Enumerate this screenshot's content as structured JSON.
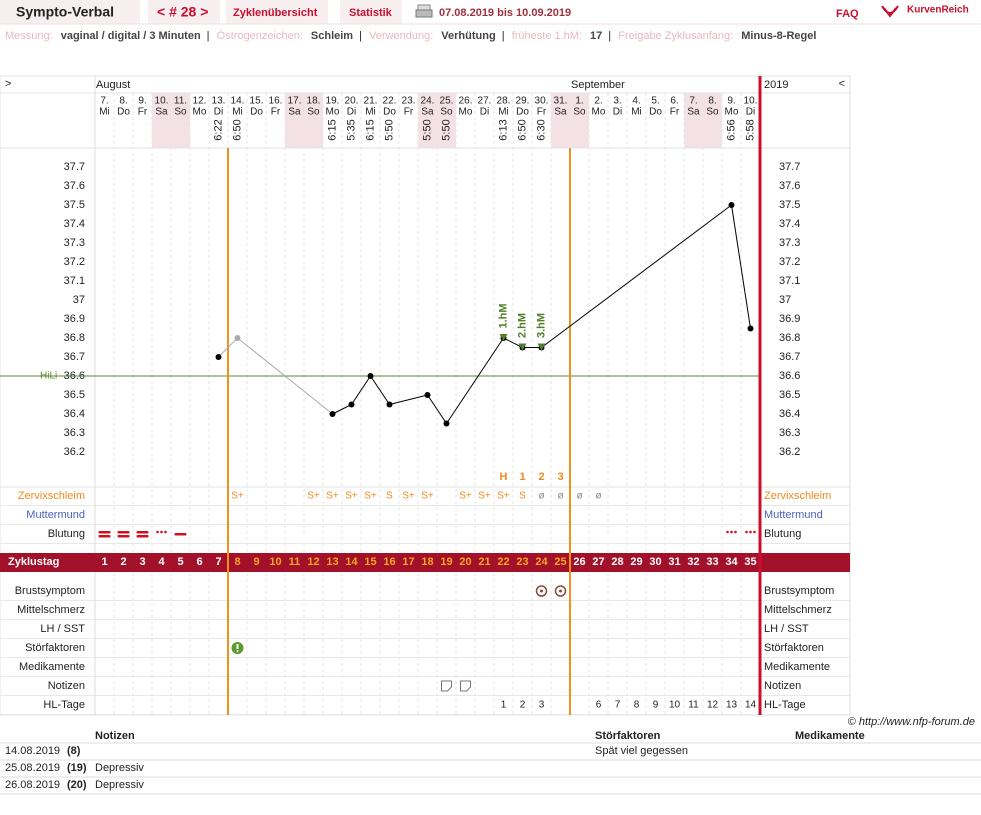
{
  "header": {
    "title": "Sympto-Verbal",
    "cycle_nav": "< # 28 >",
    "tabs": [
      "Zyklenübersicht",
      "Statistik"
    ],
    "period": "07.08.2019 bis 10.09.2019",
    "faq": "FAQ",
    "logo": "KurvenReich"
  },
  "info": [
    {
      "label": "Messung:",
      "value": "vaginal / digital / 3 Minuten"
    },
    {
      "label": "Östrogenzeichen:",
      "value": "Schleim"
    },
    {
      "label": "Verwendung:",
      "value": "Verhütung"
    },
    {
      "label": "früheste 1.hM:",
      "value": "17"
    },
    {
      "label": "Freigabe Zyklusanfang:",
      "value": "Minus-8-Regel"
    }
  ],
  "chart": {
    "nav_left": ">",
    "nav_right": "<",
    "months": [
      "August",
      "September"
    ],
    "year": "2019",
    "ylim": [
      36.0,
      37.8
    ],
    "yticks": [
      36.2,
      36.3,
      36.4,
      36.5,
      36.6,
      36.7,
      36.8,
      36.9,
      37,
      37.1,
      37.2,
      37.3,
      37.4,
      37.5,
      37.6,
      37.7
    ],
    "hili": 36.6,
    "hili_label": "HiLi",
    "fertile_window": [
      8,
      25
    ],
    "row_labels": [
      "Zervixschleim",
      "Muttermund",
      "Blutung",
      "Zyklustag",
      "Brustsymptom",
      "Mittelschmerz",
      "LH / SST",
      "Störfaktoren",
      "Medikamente",
      "Notizen",
      "HL-Tage"
    ],
    "days": [
      {
        "date": "7.",
        "weekday": "Mi",
        "cycle_day": 1,
        "bleeding": 3
      },
      {
        "date": "8.",
        "weekday": "Do",
        "cycle_day": 2,
        "bleeding": 3
      },
      {
        "date": "9.",
        "weekday": "Fr",
        "cycle_day": 3,
        "bleeding": 3
      },
      {
        "date": "10.",
        "weekday": "Sa",
        "cycle_day": 4,
        "bleeding": 1
      },
      {
        "date": "11.",
        "weekday": "So",
        "cycle_day": 5,
        "bleeding": 2
      },
      {
        "date": "12.",
        "weekday": "Mo",
        "cycle_day": 6
      },
      {
        "date": "13.",
        "weekday": "Di",
        "cycle_day": 7,
        "time": "6:22",
        "temp": 36.7
      },
      {
        "date": "14.",
        "weekday": "Mi",
        "cycle_day": 8,
        "time": "6:50",
        "temp": 36.8,
        "excluded": true,
        "mucus": "S+",
        "disturbance": true
      },
      {
        "date": "15.",
        "weekday": "Do",
        "cycle_day": 9
      },
      {
        "date": "16.",
        "weekday": "Fr",
        "cycle_day": 10
      },
      {
        "date": "17.",
        "weekday": "Sa",
        "cycle_day": 11
      },
      {
        "date": "18.",
        "weekday": "So",
        "cycle_day": 12,
        "mucus": "S+"
      },
      {
        "date": "19.",
        "weekday": "Mo",
        "cycle_day": 13,
        "time": "6:15",
        "temp": 36.4,
        "mucus": "S+"
      },
      {
        "date": "20.",
        "weekday": "Di",
        "cycle_day": 14,
        "time": "5:35",
        "temp": 36.45,
        "mucus": "S+"
      },
      {
        "date": "21.",
        "weekday": "Mi",
        "cycle_day": 15,
        "time": "6:15",
        "temp": 36.6,
        "mucus": "S+"
      },
      {
        "date": "22.",
        "weekday": "Do",
        "cycle_day": 16,
        "time": "5:50",
        "temp": 36.45,
        "mucus": "S"
      },
      {
        "date": "23.",
        "weekday": "Fr",
        "cycle_day": 17,
        "mucus": "S+"
      },
      {
        "date": "24.",
        "weekday": "Sa",
        "cycle_day": 18,
        "time": "5:50",
        "temp": 36.5,
        "mucus": "S+"
      },
      {
        "date": "25.",
        "weekday": "So",
        "cycle_day": 19,
        "time": "5:50",
        "temp": 36.35,
        "note": true
      },
      {
        "date": "26.",
        "weekday": "Mo",
        "cycle_day": 20,
        "mucus": "S+",
        "note": true
      },
      {
        "date": "27.",
        "weekday": "Di",
        "cycle_day": 21,
        "mucus": "S+"
      },
      {
        "date": "28.",
        "weekday": "Mi",
        "cycle_day": 22,
        "time": "6:13",
        "temp": 36.8,
        "mucus": "S+",
        "peak": "H",
        "hm": "1.hM",
        "hl": 1
      },
      {
        "date": "29.",
        "weekday": "Do",
        "cycle_day": 23,
        "time": "6:50",
        "temp": 36.75,
        "mucus": "S",
        "peak": "1",
        "hm": "2.hM",
        "hl": 2
      },
      {
        "date": "30.",
        "weekday": "Fr",
        "cycle_day": 24,
        "time": "6:30",
        "temp": 36.75,
        "mucus": "ø",
        "peak": "2",
        "hm": "3.hM",
        "hl": 3,
        "breast": true
      },
      {
        "date": "31.",
        "weekday": "Sa",
        "cycle_day": 25,
        "mucus": "ø",
        "peak": "3",
        "breast": true
      },
      {
        "date": "1.",
        "weekday": "So",
        "cycle_day": 26,
        "mucus": "ø"
      },
      {
        "date": "2.",
        "weekday": "Mo",
        "cycle_day": 27,
        "mucus": "ø",
        "hl": 6
      },
      {
        "date": "3.",
        "weekday": "Di",
        "cycle_day": 28,
        "hl": 7
      },
      {
        "date": "4.",
        "weekday": "Mi",
        "cycle_day": 29,
        "hl": 8
      },
      {
        "date": "5.",
        "weekday": "Do",
        "cycle_day": 30,
        "hl": 9
      },
      {
        "date": "6.",
        "weekday": "Fr",
        "cycle_day": 31,
        "hl": 10
      },
      {
        "date": "7.",
        "weekday": "Sa",
        "cycle_day": 32,
        "hl": 11
      },
      {
        "date": "8.",
        "weekday": "So",
        "cycle_day": 33,
        "hl": 12
      },
      {
        "date": "9.",
        "weekday": "Mo",
        "cycle_day": 34,
        "time": "6:56",
        "temp": 37.5,
        "bleeding": 1,
        "hl": 13
      },
      {
        "date": "10.",
        "weekday": "Di",
        "cycle_day": 35,
        "time": "5:58",
        "temp": 36.85,
        "bleeding": 1,
        "hl": 14
      }
    ]
  },
  "copyright": "© http://www.nfp-forum.de",
  "notes_table": {
    "headers": [
      "Notizen",
      "Störfaktoren",
      "Medikamente"
    ],
    "rows": [
      {
        "date": "14.08.2019",
        "cycle_day": "(8)",
        "disturbance": "Spät viel gegessen"
      },
      {
        "date": "25.08.2019",
        "cycle_day": "(19)",
        "note": "Depressiv"
      },
      {
        "date": "26.08.2019",
        "cycle_day": "(20)",
        "note": "Depressiv"
      }
    ]
  }
}
